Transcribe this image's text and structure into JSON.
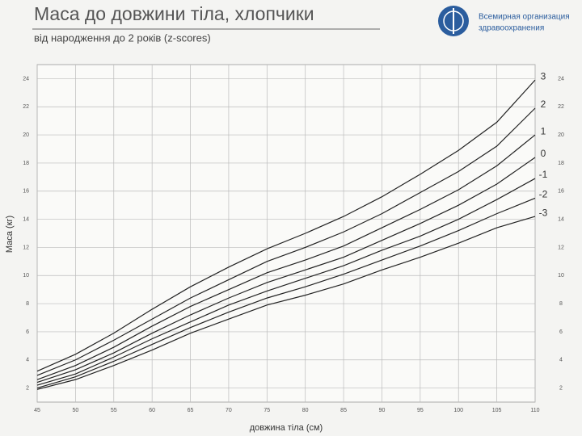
{
  "chart_data": {
    "type": "line",
    "title": "Маса до довжини тіла, хлопчики",
    "subtitle": "від народження до 2 років (z-scores)",
    "organization": [
      "Всемирная организация",
      "здравоохранения"
    ],
    "y_label": "Маса (кг)",
    "x_label": "довжина тіла (см)",
    "x": [
      45,
      50,
      55,
      60,
      65,
      70,
      75,
      80,
      85,
      90,
      95,
      100,
      105,
      110
    ],
    "xlim": [
      45,
      110
    ],
    "xticks": [
      45,
      50,
      55,
      60,
      65,
      70,
      75,
      80,
      85,
      90,
      95,
      100,
      105,
      110
    ],
    "ylim": [
      1,
      25
    ],
    "yticks": [
      2,
      4,
      6,
      8,
      10,
      12,
      14,
      16,
      18,
      20,
      22,
      24
    ],
    "grid": true,
    "series": [
      {
        "name": "3",
        "color": "#222222",
        "values": [
          3.2,
          4.4,
          5.9,
          7.6,
          9.2,
          10.6,
          11.9,
          13.0,
          14.2,
          15.6,
          17.2,
          18.9,
          20.9,
          23.9
        ]
      },
      {
        "name": "2",
        "color": "#222222",
        "values": [
          2.9,
          4.0,
          5.4,
          6.9,
          8.4,
          9.7,
          11.0,
          12.0,
          13.1,
          14.4,
          15.9,
          17.4,
          19.2,
          21.9
        ]
      },
      {
        "name": "1",
        "color": "#222222",
        "values": [
          2.6,
          3.6,
          4.9,
          6.4,
          7.8,
          9.0,
          10.2,
          11.1,
          12.1,
          13.4,
          14.7,
          16.1,
          17.8,
          20.0
        ]
      },
      {
        "name": "0",
        "color": "#222222",
        "values": [
          2.4,
          3.3,
          4.5,
          5.9,
          7.2,
          8.4,
          9.5,
          10.4,
          11.3,
          12.5,
          13.7,
          15.0,
          16.5,
          18.4
        ]
      },
      {
        "name": "-1",
        "color": "#222222",
        "values": [
          2.2,
          3.0,
          4.2,
          5.5,
          6.7,
          7.9,
          8.9,
          9.8,
          10.7,
          11.8,
          12.8,
          14.0,
          15.4,
          16.9
        ]
      },
      {
        "name": "-2",
        "color": "#222222",
        "values": [
          2.0,
          2.8,
          3.9,
          5.1,
          6.3,
          7.4,
          8.4,
          9.2,
          10.1,
          11.1,
          12.1,
          13.2,
          14.4,
          15.5
        ]
      },
      {
        "name": "-3",
        "color": "#222222",
        "values": [
          1.9,
          2.6,
          3.6,
          4.7,
          5.9,
          6.9,
          7.9,
          8.6,
          9.4,
          10.4,
          11.3,
          12.3,
          13.4,
          14.2
        ]
      }
    ]
  }
}
